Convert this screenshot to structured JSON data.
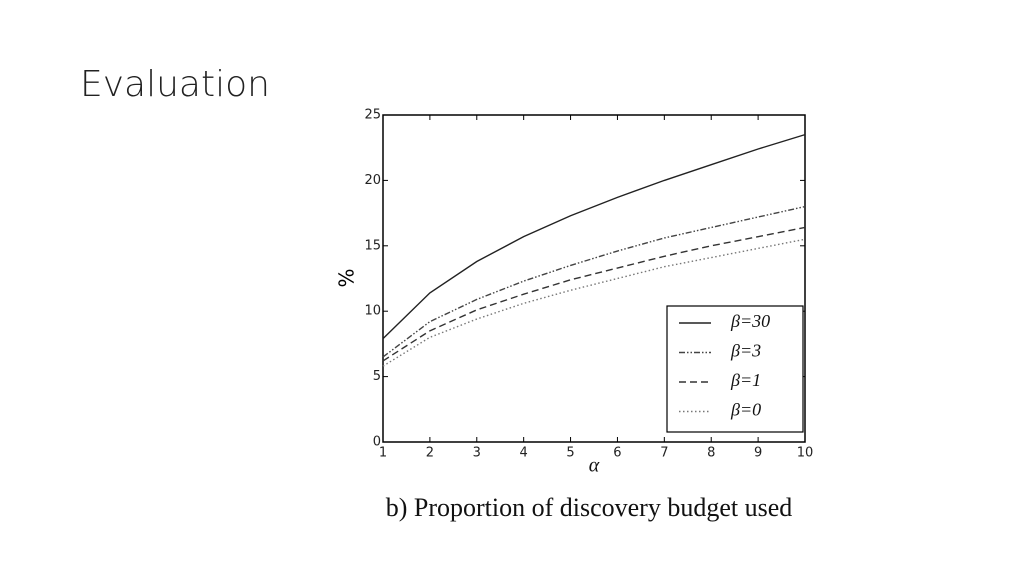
{
  "slide": {
    "title": "Evaluation"
  },
  "chart_data": {
    "type": "line",
    "caption": "b) Proportion of discovery budget used",
    "x_label": "α",
    "y_label": "%",
    "x": [
      1,
      2,
      3,
      4,
      5,
      6,
      7,
      8,
      9,
      10
    ],
    "xlim": [
      1,
      10
    ],
    "xticks": [
      1,
      2,
      3,
      4,
      5,
      6,
      7,
      8,
      9,
      10
    ],
    "ylim": [
      0,
      25
    ],
    "yticks": [
      0,
      5,
      10,
      15,
      20,
      25
    ],
    "legend": "lower right",
    "series": [
      {
        "name": "β=30",
        "color": "#222222",
        "dash": "solid",
        "values": [
          7.9,
          11.4,
          13.8,
          15.7,
          17.3,
          18.7,
          20.0,
          21.2,
          22.4,
          23.5
        ]
      },
      {
        "name": "β=3",
        "color": "#444444",
        "dash": "dashdotdot",
        "values": [
          6.5,
          9.2,
          10.9,
          12.3,
          13.5,
          14.6,
          15.6,
          16.4,
          17.2,
          18.0
        ]
      },
      {
        "name": "β=1",
        "color": "#333333",
        "dash": "dashed",
        "values": [
          6.2,
          8.5,
          10.1,
          11.3,
          12.4,
          13.3,
          14.2,
          15.0,
          15.7,
          16.4
        ]
      },
      {
        "name": "β=0",
        "color": "#777777",
        "dash": "dotted",
        "values": [
          5.8,
          8.0,
          9.4,
          10.6,
          11.6,
          12.5,
          13.4,
          14.1,
          14.8,
          15.5
        ]
      }
    ]
  }
}
